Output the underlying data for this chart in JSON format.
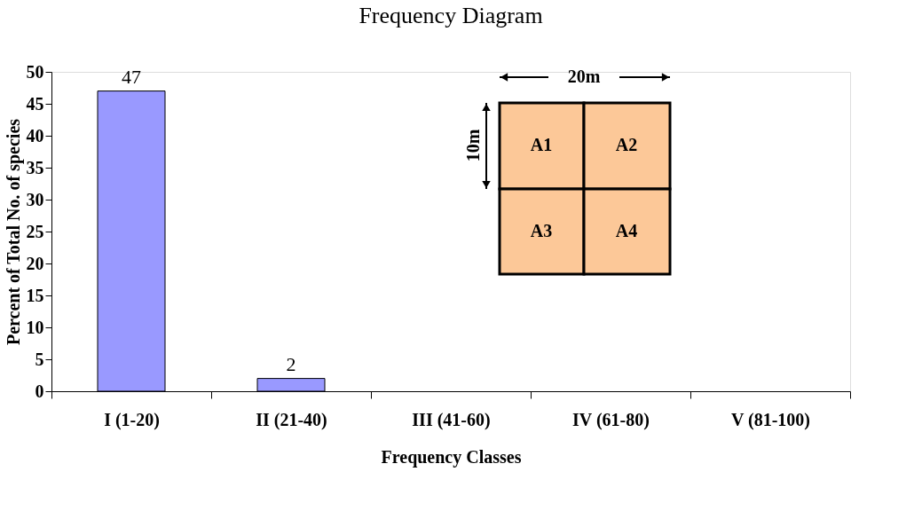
{
  "chart_data": {
    "type": "bar",
    "title": "Frequency Diagram",
    "xlabel": "Frequency Classes",
    "ylabel": "Percent of Total No. of species",
    "categories": [
      "I (1-20)",
      "II (21-40)",
      "III (41-60)",
      "IV (61-80)",
      "V (81-100)"
    ],
    "values": [
      47,
      2,
      null,
      null,
      null
    ],
    "color": "#9999ff",
    "value_labels": [
      "47",
      "2",
      null,
      null,
      null
    ],
    "ylim": [
      0,
      50
    ],
    "yticks": [
      0,
      5,
      10,
      15,
      20,
      25,
      30,
      35,
      40,
      45,
      50
    ],
    "grid": false,
    "annotations": [
      "20m",
      "10m",
      "A1",
      "A2",
      "A3",
      "A4"
    ]
  }
}
